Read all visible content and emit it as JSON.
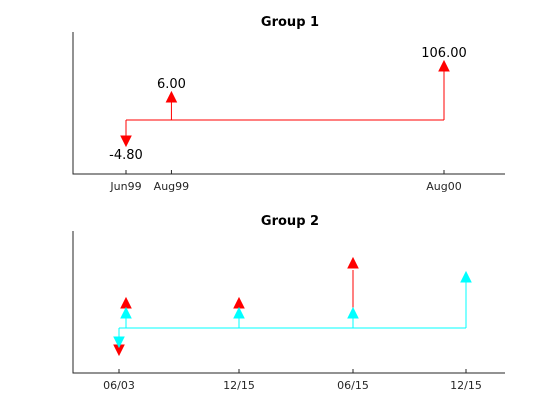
{
  "chart_data": [
    {
      "type": "cash-flow-stem",
      "title": "Group 1",
      "x_ticks": [
        "Jun99",
        "Aug99",
        "Aug00"
      ],
      "series": [
        {
          "color": "#ff0000",
          "flows": [
            {
              "date": "Jun99",
              "value": -4.8,
              "label": "-4.80"
            },
            {
              "date": "Aug99",
              "value": 6.0,
              "label": "6.00"
            },
            {
              "date": "Aug00",
              "value": 106.0,
              "label": "106.00"
            }
          ]
        }
      ],
      "xlim": [
        "1999-02",
        "2000-10"
      ]
    },
    {
      "type": "cash-flow-stem",
      "title": "Group 2",
      "x_ticks": [
        "06/03",
        "12/15",
        "06/15",
        "12/15"
      ],
      "series": [
        {
          "color": "#ff0000",
          "flows": [
            {
              "date": "06/03",
              "direction": "down"
            },
            {
              "date": "06/03",
              "direction": "up"
            },
            {
              "date": "12/15",
              "direction": "up"
            },
            {
              "date": "06/15",
              "direction": "up"
            }
          ]
        },
        {
          "color": "#00ffff",
          "flows": [
            {
              "date": "06/03",
              "direction": "down"
            },
            {
              "date": "06/03",
              "direction": "up"
            },
            {
              "date": "12/15",
              "direction": "up"
            },
            {
              "date": "06/15",
              "direction": "up"
            },
            {
              "date": "12/15",
              "direction": "up"
            }
          ]
        }
      ]
    }
  ]
}
